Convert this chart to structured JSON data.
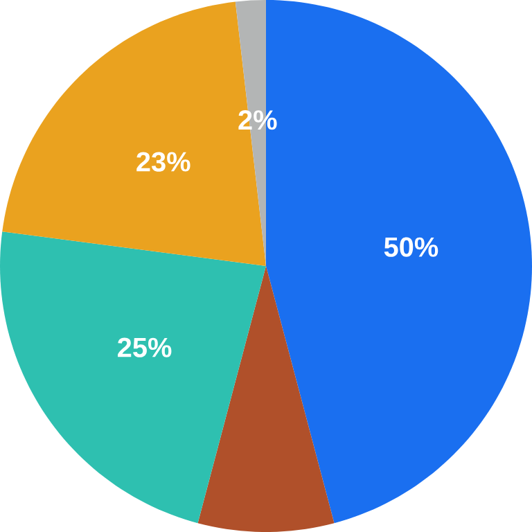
{
  "chart_data": {
    "type": "pie",
    "categories": [
      null,
      null,
      null,
      null,
      null
    ],
    "values": [
      50,
      9,
      25,
      23,
      2
    ],
    "colors": [
      "#1a6ff0",
      "#b0502a",
      "#2ec0b0",
      "#eaa21f",
      "#b3b5b5"
    ],
    "value_labels": [
      "50%",
      null,
      "25%",
      "23%",
      "2%"
    ]
  }
}
